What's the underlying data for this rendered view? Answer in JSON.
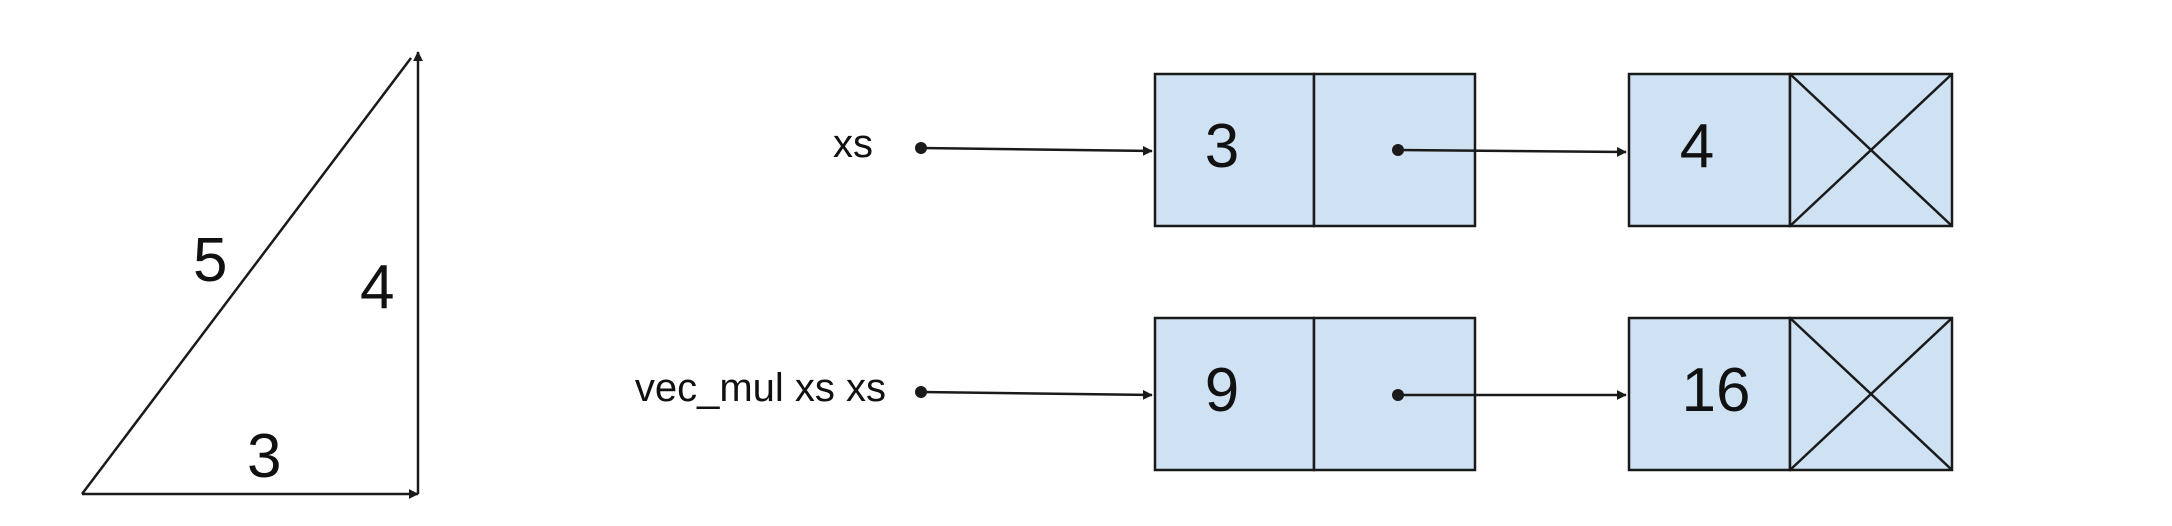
{
  "triangle": {
    "hypotenuse_label": "5",
    "vertical_label": "4",
    "base_label": "3"
  },
  "lists": [
    {
      "name": "xs",
      "nodes": [
        {
          "value": "3",
          "next": "pointer"
        },
        {
          "value": "4",
          "next": "null"
        }
      ]
    },
    {
      "name": "vec_mul xs xs",
      "nodes": [
        {
          "value": "9",
          "next": "pointer"
        },
        {
          "value": "16",
          "next": "null"
        }
      ]
    }
  ],
  "colors": {
    "cell_fill": "#cfe2f3",
    "stroke": "#1a1a1a"
  }
}
